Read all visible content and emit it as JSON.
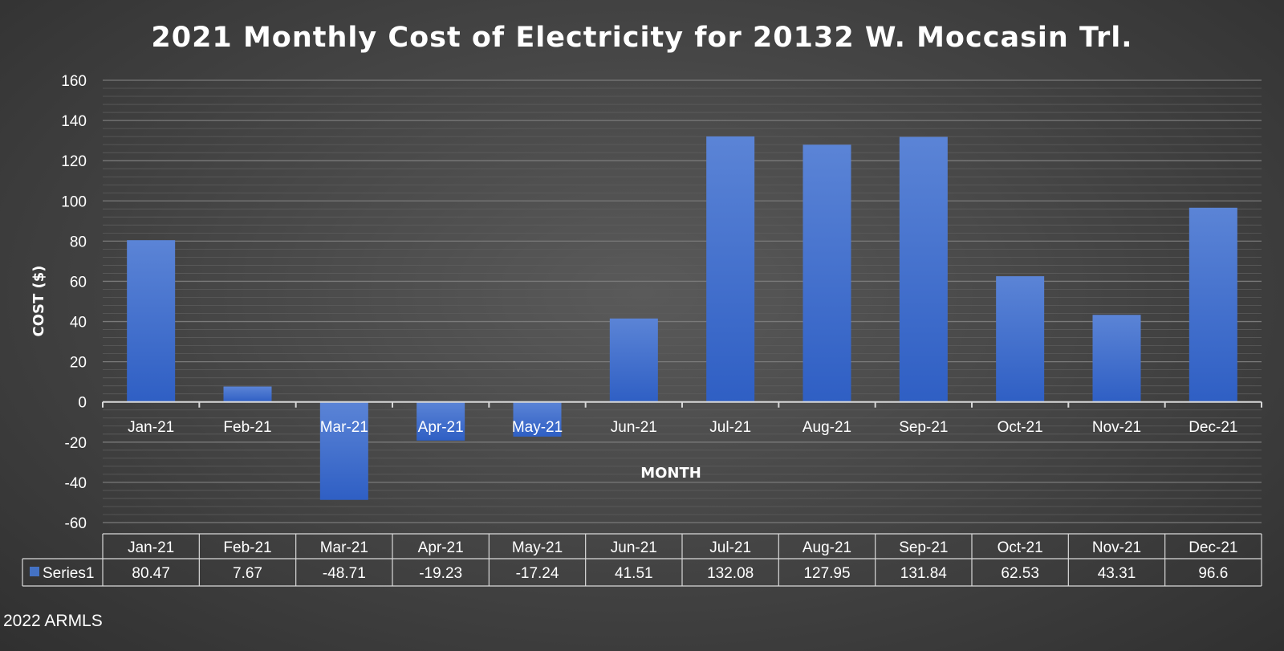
{
  "watermark": "2022 ARMLS",
  "chart_data": {
    "type": "bar",
    "title": "2021 Monthly Cost of Electricity for 20132 W. Moccasin Trl.",
    "xlabel": "MONTH",
    "ylabel": "COST ($)",
    "ylim": [
      -60,
      160
    ],
    "yticks": [
      160,
      140,
      120,
      100,
      80,
      60,
      40,
      20,
      0,
      -20,
      -40,
      -60
    ],
    "grid": true,
    "legend": "data-table",
    "categories": [
      "Jan-21",
      "Feb-21",
      "Mar-21",
      "Apr-21",
      "May-21",
      "Jun-21",
      "Jul-21",
      "Aug-21",
      "Sep-21",
      "Oct-21",
      "Nov-21",
      "Dec-21"
    ],
    "series": [
      {
        "name": "Series1",
        "color": "#4472c4",
        "values": [
          80.47,
          7.67,
          -48.71,
          -19.23,
          -17.24,
          41.51,
          132.08,
          127.95,
          131.84,
          62.53,
          43.31,
          96.6
        ],
        "labels": [
          "80.47",
          "7.67",
          "-48.71",
          "-19.23",
          "-17.24",
          "41.51",
          "132.08",
          "127.95",
          "131.84",
          "62.53",
          "43.31",
          "96.6"
        ]
      }
    ]
  }
}
